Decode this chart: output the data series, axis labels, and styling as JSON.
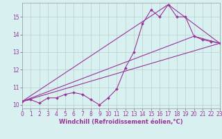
{
  "background_color": "#d8f0f0",
  "grid_color": "#b8d0d0",
  "line_color": "#993399",
  "xlabel": "Windchill (Refroidissement éolien,°C)",
  "xlim": [
    0,
    23
  ],
  "ylim": [
    9.8,
    15.8
  ],
  "yticks": [
    10,
    11,
    12,
    13,
    14,
    15
  ],
  "xticks": [
    0,
    1,
    2,
    3,
    4,
    5,
    6,
    7,
    8,
    9,
    10,
    11,
    12,
    13,
    14,
    15,
    16,
    17,
    18,
    19,
    20,
    21,
    22,
    23
  ],
  "main_series": {
    "x": [
      0,
      1,
      2,
      3,
      4,
      5,
      6,
      7,
      8,
      9,
      10,
      11,
      12,
      13,
      14,
      15,
      16,
      17,
      18,
      19,
      20,
      21,
      22,
      23
    ],
    "y": [
      10.2,
      10.3,
      10.1,
      10.4,
      10.4,
      10.6,
      10.7,
      10.6,
      10.3,
      10.0,
      10.4,
      10.9,
      12.1,
      13.0,
      14.6,
      15.4,
      15.0,
      15.7,
      15.0,
      15.0,
      13.9,
      13.7,
      13.6,
      13.5
    ]
  },
  "straight_lines": [
    {
      "x": [
        0,
        23
      ],
      "y": [
        10.2,
        13.5
      ]
    },
    {
      "x": [
        0,
        17,
        23
      ],
      "y": [
        10.2,
        15.7,
        13.5
      ]
    },
    {
      "x": [
        0,
        20,
        23
      ],
      "y": [
        10.2,
        13.9,
        13.5
      ]
    }
  ],
  "marker": "D",
  "markersize": 2.0,
  "linewidth": 0.8,
  "tick_fontsize": 5.5,
  "xlabel_fontsize": 6.0
}
